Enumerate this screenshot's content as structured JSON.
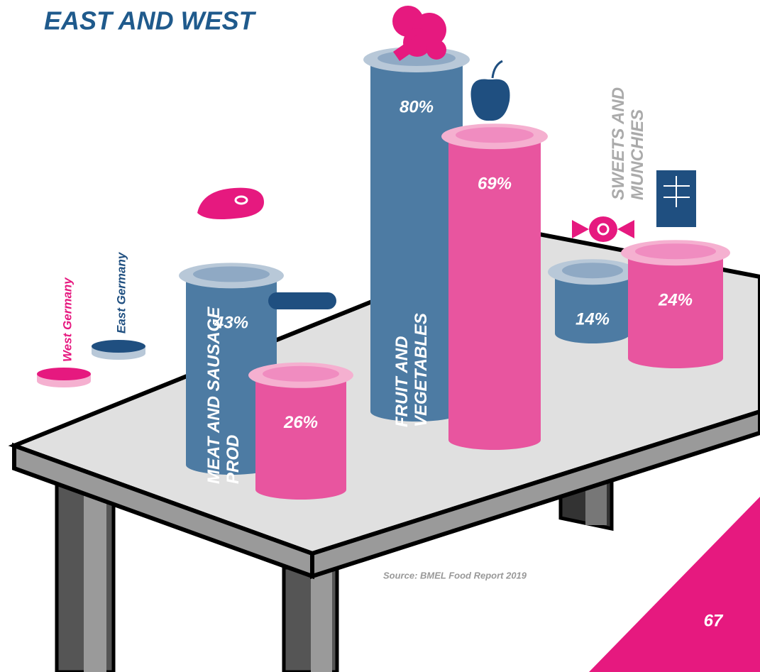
{
  "chart_data": {
    "type": "bar",
    "title": "EAST AND WEST",
    "categories": [
      "MEAT AND SAUSAGE PROD",
      "FRUIT AND VEGETABLES",
      "SWEETS AND MUNCHIES"
    ],
    "series": [
      {
        "name": "East Germany",
        "color": "#4d7ba3",
        "values": [
          43,
          80,
          14
        ],
        "value_labels": [
          "43%",
          "80%",
          "14%"
        ]
      },
      {
        "name": "West Germany",
        "color": "#e8559f",
        "values": [
          26,
          69,
          24
        ],
        "value_labels": [
          "26%",
          "69%",
          "24%"
        ]
      }
    ],
    "source": "Source: BMEL Food Report 2019",
    "page_number": "67"
  }
}
